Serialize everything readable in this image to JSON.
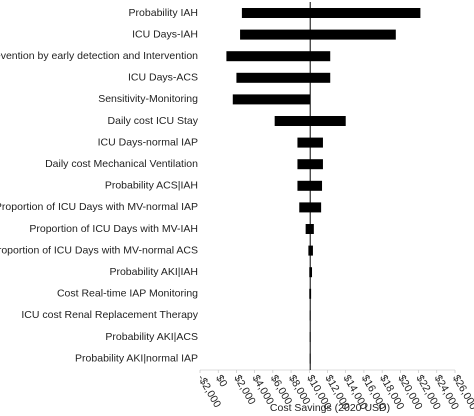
{
  "chart_data": {
    "type": "tornado",
    "x_label": "Cost Savings (2020 USD)",
    "categories": [
      "Probability IAH",
      "ICU Days-IAH",
      "Prevention by early detection and Intervention",
      "ICU Days-ACS",
      "Sensitivity-Monitoring",
      "Daily cost ICU Stay",
      "ICU Days-normal IAP",
      "Daily cost Mechanical Ventilation",
      "Probability ACS|IAH",
      "Proportion of ICU Days with MV-normal IAP",
      "Proportion of ICU Days with MV-IAH",
      "Proportion of ICU Days with MV-normal ACS",
      "Probability AKI|IAH",
      "Cost Real-time IAP Monitoring",
      "ICU cost Renal Replacement Therapy",
      "Probability AKI|ACS",
      "Probability AKI|normal IAP"
    ],
    "low": [
      2600,
      2400,
      900,
      2000,
      1600,
      6200,
      8700,
      8700,
      8700,
      8900,
      9600,
      9900,
      10000,
      10000,
      10050,
      10050,
      10050
    ],
    "high": [
      22200,
      19500,
      12300,
      12300,
      10100,
      14000,
      11500,
      11500,
      11400,
      11300,
      10500,
      10400,
      10300,
      10200,
      10150,
      10150,
      10150
    ],
    "baseline": 10100,
    "color": "#000000",
    "xlim": [
      -2000,
      26000
    ],
    "xticks": [
      {
        "value": -2000,
        "label": "-$2,000"
      },
      {
        "value": 0,
        "label": "$0"
      },
      {
        "value": 2000,
        "label": "$2,000"
      },
      {
        "value": 4000,
        "label": "$4,000"
      },
      {
        "value": 6000,
        "label": "$6,000"
      },
      {
        "value": 8000,
        "label": "$8,000"
      },
      {
        "value": 10000,
        "label": "$10,000"
      },
      {
        "value": 12000,
        "label": "$12,000"
      },
      {
        "value": 14000,
        "label": "$14,000"
      },
      {
        "value": 16000,
        "label": "$16,000"
      },
      {
        "value": 18000,
        "label": "$18,000"
      },
      {
        "value": 20000,
        "label": "$20,000"
      },
      {
        "value": 22000,
        "label": "$22,000"
      },
      {
        "value": 24000,
        "label": "$24,000"
      },
      {
        "value": 26000,
        "label": "$26,000"
      }
    ]
  }
}
